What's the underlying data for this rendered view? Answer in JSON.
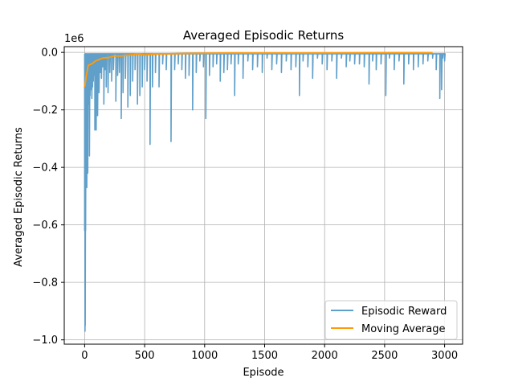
{
  "chart_data": {
    "type": "line",
    "title": "Averaged Episodic Returns",
    "xlabel": "Episode",
    "ylabel": "Averaged Episodic Returns",
    "y_scale_label": "1e6",
    "xlim": [
      -170,
      3150
    ],
    "ylim": [
      -1.015,
      0.02
    ],
    "x_ticks": [
      0,
      500,
      1000,
      1500,
      2000,
      2500,
      3000
    ],
    "x_tick_labels": [
      "0",
      "500",
      "1000",
      "1500",
      "2000",
      "2500",
      "3000"
    ],
    "y_ticks": [
      0.0,
      -0.2,
      -0.4,
      -0.6,
      -0.8,
      -1.0
    ],
    "y_tick_labels": [
      "0.0",
      "−0.2",
      "−0.4",
      "−0.6",
      "−0.8",
      "−1.0"
    ],
    "grid": true,
    "legend_position": "lower-right",
    "series": [
      {
        "name": "Episodic Reward",
        "color": "#5f9fc9",
        "baseline": -0.005,
        "spikes": [
          [
            0,
            -0.62
          ],
          [
            3,
            -0.97
          ],
          [
            5,
            -0.95
          ],
          [
            8,
            -0.62
          ],
          [
            12,
            -0.45
          ],
          [
            15,
            -0.02
          ],
          [
            18,
            -0.47
          ],
          [
            22,
            -0.3
          ],
          [
            26,
            -0.42
          ],
          [
            30,
            -0.13
          ],
          [
            34,
            -0.18
          ],
          [
            38,
            -0.15
          ],
          [
            40,
            -0.36
          ],
          [
            45,
            -0.15
          ],
          [
            50,
            -0.13
          ],
          [
            55,
            -0.09
          ],
          [
            60,
            -0.16
          ],
          [
            66,
            -0.12
          ],
          [
            72,
            -0.1
          ],
          [
            78,
            -0.08
          ],
          [
            85,
            -0.27
          ],
          [
            90,
            -0.17
          ],
          [
            96,
            -0.27
          ],
          [
            102,
            -0.15
          ],
          [
            108,
            -0.22
          ],
          [
            114,
            -0.1
          ],
          [
            120,
            -0.14
          ],
          [
            130,
            -0.07
          ],
          [
            140,
            -0.09
          ],
          [
            150,
            -0.05
          ],
          [
            160,
            -0.18
          ],
          [
            170,
            -0.06
          ],
          [
            180,
            -0.12
          ],
          [
            195,
            -0.14
          ],
          [
            210,
            -0.07
          ],
          [
            225,
            -0.1
          ],
          [
            240,
            -0.06
          ],
          [
            260,
            -0.17
          ],
          [
            275,
            -0.08
          ],
          [
            290,
            -0.07
          ],
          [
            305,
            -0.23
          ],
          [
            320,
            -0.14
          ],
          [
            340,
            -0.09
          ],
          [
            360,
            -0.19
          ],
          [
            380,
            -0.15
          ],
          [
            400,
            -0.1
          ],
          [
            420,
            -0.06
          ],
          [
            440,
            -0.18
          ],
          [
            460,
            -0.15
          ],
          [
            480,
            -0.12
          ],
          [
            500,
            -0.06
          ],
          [
            520,
            -0.1
          ],
          [
            545,
            -0.32
          ],
          [
            565,
            -0.12
          ],
          [
            590,
            -0.07
          ],
          [
            620,
            -0.12
          ],
          [
            650,
            -0.04
          ],
          [
            680,
            -0.06
          ],
          [
            720,
            -0.31
          ],
          [
            750,
            -0.06
          ],
          [
            780,
            -0.04
          ],
          [
            810,
            -0.06
          ],
          [
            840,
            -0.09
          ],
          [
            870,
            -0.08
          ],
          [
            900,
            -0.2
          ],
          [
            930,
            -0.07
          ],
          [
            960,
            -0.03
          ],
          [
            990,
            -0.05
          ],
          [
            1010,
            -0.23
          ],
          [
            1040,
            -0.08
          ],
          [
            1070,
            -0.05
          ],
          [
            1100,
            -0.04
          ],
          [
            1130,
            -0.1
          ],
          [
            1160,
            -0.07
          ],
          [
            1190,
            -0.06
          ],
          [
            1220,
            -0.04
          ],
          [
            1250,
            -0.15
          ],
          [
            1280,
            -0.04
          ],
          [
            1320,
            -0.09
          ],
          [
            1360,
            -0.03
          ],
          [
            1400,
            -0.06
          ],
          [
            1440,
            -0.05
          ],
          [
            1480,
            -0.07
          ],
          [
            1520,
            -0.02
          ],
          [
            1560,
            -0.06
          ],
          [
            1600,
            -0.04
          ],
          [
            1640,
            -0.07
          ],
          [
            1680,
            -0.03
          ],
          [
            1720,
            -0.06
          ],
          [
            1760,
            -0.05
          ],
          [
            1790,
            -0.15
          ],
          [
            1820,
            -0.03
          ],
          [
            1860,
            -0.05
          ],
          [
            1900,
            -0.09
          ],
          [
            1940,
            -0.02
          ],
          [
            1980,
            -0.04
          ],
          [
            2020,
            -0.06
          ],
          [
            2060,
            -0.03
          ],
          [
            2100,
            -0.09
          ],
          [
            2140,
            -0.02
          ],
          [
            2180,
            -0.05
          ],
          [
            2210,
            -0.03
          ],
          [
            2250,
            -0.04
          ],
          [
            2290,
            -0.04
          ],
          [
            2330,
            -0.05
          ],
          [
            2370,
            -0.11
          ],
          [
            2400,
            -0.03
          ],
          [
            2430,
            -0.06
          ],
          [
            2470,
            -0.04
          ],
          [
            2510,
            -0.15
          ],
          [
            2540,
            -0.02
          ],
          [
            2580,
            -0.06
          ],
          [
            2620,
            -0.03
          ],
          [
            2660,
            -0.11
          ],
          [
            2700,
            -0.04
          ],
          [
            2740,
            -0.06
          ],
          [
            2780,
            -0.05
          ],
          [
            2820,
            -0.04
          ],
          [
            2860,
            -0.03
          ],
          [
            2900,
            -0.02
          ],
          [
            2930,
            -0.06
          ],
          [
            2960,
            -0.16
          ],
          [
            2975,
            -0.13
          ],
          [
            2985,
            -0.02
          ],
          [
            3000,
            -0.03
          ]
        ]
      },
      {
        "name": "Moving Average",
        "color": "#ff9a0a",
        "points": [
          [
            0,
            -0.12
          ],
          [
            15,
            -0.08
          ],
          [
            30,
            -0.045
          ],
          [
            60,
            -0.04
          ],
          [
            90,
            -0.03
          ],
          [
            120,
            -0.025
          ],
          [
            150,
            -0.02
          ],
          [
            200,
            -0.018
          ],
          [
            250,
            -0.012
          ],
          [
            300,
            -0.013
          ],
          [
            350,
            -0.01
          ],
          [
            400,
            -0.008
          ],
          [
            450,
            -0.006
          ],
          [
            500,
            -0.009
          ],
          [
            600,
            -0.006
          ],
          [
            700,
            -0.005
          ],
          [
            800,
            -0.004
          ],
          [
            1000,
            -0.003
          ],
          [
            1200,
            -0.002
          ],
          [
            1500,
            -0.002
          ],
          [
            1800,
            -0.002
          ],
          [
            2100,
            -0.0015
          ],
          [
            2400,
            -0.001
          ],
          [
            2700,
            -0.001
          ],
          [
            2900,
            -0.001
          ]
        ]
      }
    ]
  }
}
